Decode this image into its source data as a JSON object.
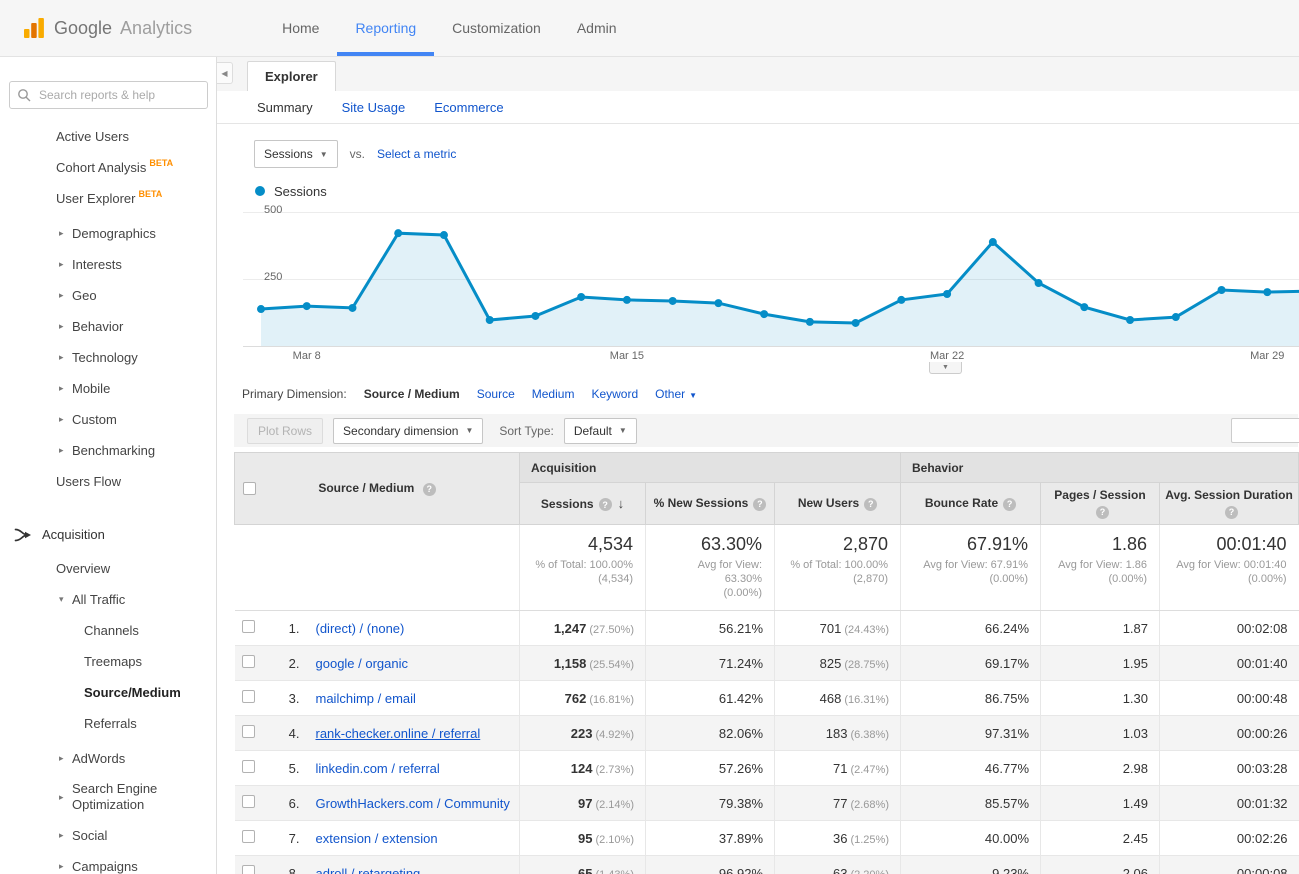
{
  "topbar": {
    "brand_google": "Google",
    "brand_analytics": "Analytics",
    "nav": [
      {
        "label": "Home",
        "active": false
      },
      {
        "label": "Reporting",
        "active": true
      },
      {
        "label": "Customization",
        "active": false
      },
      {
        "label": "Admin",
        "active": false
      }
    ]
  },
  "sidebar": {
    "search_placeholder": "Search reports & help",
    "items": [
      {
        "label": "Active Users",
        "indent": 1,
        "type": "plain"
      },
      {
        "label": "Cohort Analysis",
        "indent": 1,
        "type": "plain",
        "badge": "BETA"
      },
      {
        "label": "User Explorer",
        "indent": 1,
        "type": "plain",
        "badge": "BETA"
      },
      {
        "label": "Demographics",
        "indent": 1,
        "type": "collapsed",
        "gap": true
      },
      {
        "label": "Interests",
        "indent": 1,
        "type": "collapsed"
      },
      {
        "label": "Geo",
        "indent": 1,
        "type": "collapsed"
      },
      {
        "label": "Behavior",
        "indent": 1,
        "type": "collapsed"
      },
      {
        "label": "Technology",
        "indent": 1,
        "type": "collapsed"
      },
      {
        "label": "Mobile",
        "indent": 1,
        "type": "collapsed"
      },
      {
        "label": "Custom",
        "indent": 1,
        "type": "collapsed"
      },
      {
        "label": "Benchmarking",
        "indent": 1,
        "type": "collapsed"
      },
      {
        "label": "Users Flow",
        "indent": 1,
        "type": "plain"
      },
      {
        "label": "Acquisition",
        "indent": 0,
        "type": "section",
        "icon": "acquisition-icon"
      },
      {
        "label": "Overview",
        "indent": 1,
        "type": "plain"
      },
      {
        "label": "All Traffic",
        "indent": 1,
        "type": "expanded"
      },
      {
        "label": "Channels",
        "indent": 2,
        "type": "plain"
      },
      {
        "label": "Treemaps",
        "indent": 2,
        "type": "plain"
      },
      {
        "label": "Source/Medium",
        "indent": 2,
        "type": "plain",
        "active": true
      },
      {
        "label": "Referrals",
        "indent": 2,
        "type": "plain"
      },
      {
        "label": "AdWords",
        "indent": 1,
        "type": "collapsed",
        "gap": true
      },
      {
        "label": "Search Engine Optimization",
        "indent": 1,
        "type": "collapsed"
      },
      {
        "label": "Social",
        "indent": 1,
        "type": "collapsed"
      },
      {
        "label": "Campaigns",
        "indent": 1,
        "type": "collapsed"
      }
    ]
  },
  "explorer": {
    "tab_label": "Explorer",
    "subtabs": [
      {
        "label": "Summary",
        "active": true
      },
      {
        "label": "Site Usage",
        "active": false
      },
      {
        "label": "Ecommerce",
        "active": false
      }
    ],
    "metric_selected": "Sessions",
    "vs_label": "vs.",
    "select_metric_label": "Select a metric",
    "legend_label": "Sessions"
  },
  "chart_data": {
    "type": "line",
    "title": "Sessions over time",
    "series": [
      {
        "name": "Sessions",
        "values": [
          138,
          149,
          142,
          421,
          414,
          97,
          112,
          183,
          172,
          168,
          160,
          119,
          90,
          86,
          172,
          194,
          388,
          235,
          145,
          97,
          108,
          209,
          201,
          205
        ]
      }
    ],
    "x_tick_labels": [
      "Mar 8",
      "Mar 15",
      "Mar 22",
      "Mar 29"
    ],
    "x_tick_indices": [
      1,
      8,
      15,
      22
    ],
    "ylim": [
      0,
      500
    ],
    "ytick_labels": [
      "500",
      "250"
    ],
    "grid": true,
    "legend_position": "top-left",
    "line_color": "#058dc7"
  },
  "dimension_bar": {
    "label": "Primary Dimension:",
    "options": [
      {
        "label": "Source / Medium",
        "active": true
      },
      {
        "label": "Source",
        "active": false
      },
      {
        "label": "Medium",
        "active": false
      },
      {
        "label": "Keyword",
        "active": false
      },
      {
        "label": "Other",
        "active": false,
        "dropdown": true
      }
    ]
  },
  "toolbar": {
    "plot_rows_label": "Plot Rows",
    "secondary_dimension_label": "Secondary dimension",
    "sort_type_label": "Sort Type:",
    "sort_type_value": "Default",
    "search_value": ""
  },
  "table": {
    "dimension_header": "Source / Medium",
    "groups": [
      {
        "label": "Acquisition"
      },
      {
        "label": "Behavior"
      }
    ],
    "columns": [
      {
        "label": "Sessions",
        "sorted": true
      },
      {
        "label": "% New Sessions"
      },
      {
        "label": "New Users"
      },
      {
        "label": "Bounce Rate"
      },
      {
        "label": "Pages / Session",
        "wrap": true
      },
      {
        "label": "Avg. Session Duration",
        "wrap": true
      }
    ],
    "totals": [
      {
        "value": "4,534",
        "note1": "% of Total: 100.00%",
        "note2": "(4,534)"
      },
      {
        "value": "63.30%",
        "note1": "Avg for View: 63.30%",
        "note2": "(0.00%)"
      },
      {
        "value": "2,870",
        "note1": "% of Total: 100.00%",
        "note2": "(2,870)"
      },
      {
        "value": "67.91%",
        "note1": "Avg for View: 67.91%",
        "note2": "(0.00%)"
      },
      {
        "value": "1.86",
        "note1": "Avg for View: 1.86",
        "note2": "(0.00%)"
      },
      {
        "value": "00:01:40",
        "note1": "Avg for View: 00:01:40",
        "note2": "(0.00%)"
      }
    ],
    "rows": [
      {
        "rank": "1.",
        "source": "(direct) / (none)",
        "underlined": false,
        "sessions": "1,247",
        "sessions_pct": "(27.50%)",
        "new_sessions": "56.21%",
        "new_users": "701",
        "new_users_pct": "(24.43%)",
        "bounce_rate": "66.24%",
        "pages_session": "1.87",
        "avg_duration": "00:02:08"
      },
      {
        "rank": "2.",
        "source": "google / organic",
        "underlined": false,
        "sessions": "1,158",
        "sessions_pct": "(25.54%)",
        "new_sessions": "71.24%",
        "new_users": "825",
        "new_users_pct": "(28.75%)",
        "bounce_rate": "69.17%",
        "pages_session": "1.95",
        "avg_duration": "00:01:40"
      },
      {
        "rank": "3.",
        "source": "mailchimp / email",
        "underlined": false,
        "sessions": "762",
        "sessions_pct": "(16.81%)",
        "new_sessions": "61.42%",
        "new_users": "468",
        "new_users_pct": "(16.31%)",
        "bounce_rate": "86.75%",
        "pages_session": "1.30",
        "avg_duration": "00:00:48"
      },
      {
        "rank": "4.",
        "source": "rank-checker.online / referral",
        "underlined": true,
        "sessions": "223",
        "sessions_pct": "(4.92%)",
        "new_sessions": "82.06%",
        "new_users": "183",
        "new_users_pct": "(6.38%)",
        "bounce_rate": "97.31%",
        "pages_session": "1.03",
        "avg_duration": "00:00:26"
      },
      {
        "rank": "5.",
        "source": "linkedin.com / referral",
        "underlined": false,
        "sessions": "124",
        "sessions_pct": "(2.73%)",
        "new_sessions": "57.26%",
        "new_users": "71",
        "new_users_pct": "(2.47%)",
        "bounce_rate": "46.77%",
        "pages_session": "2.98",
        "avg_duration": "00:03:28"
      },
      {
        "rank": "6.",
        "source": "GrowthHackers.com / Community",
        "underlined": false,
        "sessions": "97",
        "sessions_pct": "(2.14%)",
        "new_sessions": "79.38%",
        "new_users": "77",
        "new_users_pct": "(2.68%)",
        "bounce_rate": "85.57%",
        "pages_session": "1.49",
        "avg_duration": "00:01:32"
      },
      {
        "rank": "7.",
        "source": "extension / extension",
        "underlined": false,
        "sessions": "95",
        "sessions_pct": "(2.10%)",
        "new_sessions": "37.89%",
        "new_users": "36",
        "new_users_pct": "(1.25%)",
        "bounce_rate": "40.00%",
        "pages_session": "2.45",
        "avg_duration": "00:02:26"
      },
      {
        "rank": "8.",
        "source": "adroll / retargeting",
        "underlined": false,
        "sessions": "65",
        "sessions_pct": "(1.43%)",
        "new_sessions": "96.92%",
        "new_users": "63",
        "new_users_pct": "(2.20%)",
        "bounce_rate": "9.23%",
        "pages_session": "2.06",
        "avg_duration": "00:00:08"
      }
    ]
  },
  "colors": {
    "accent_blue": "#4285f4",
    "link_blue": "#1155cc",
    "chart_blue": "#058dc7",
    "beta_orange": "#ff8f00"
  }
}
